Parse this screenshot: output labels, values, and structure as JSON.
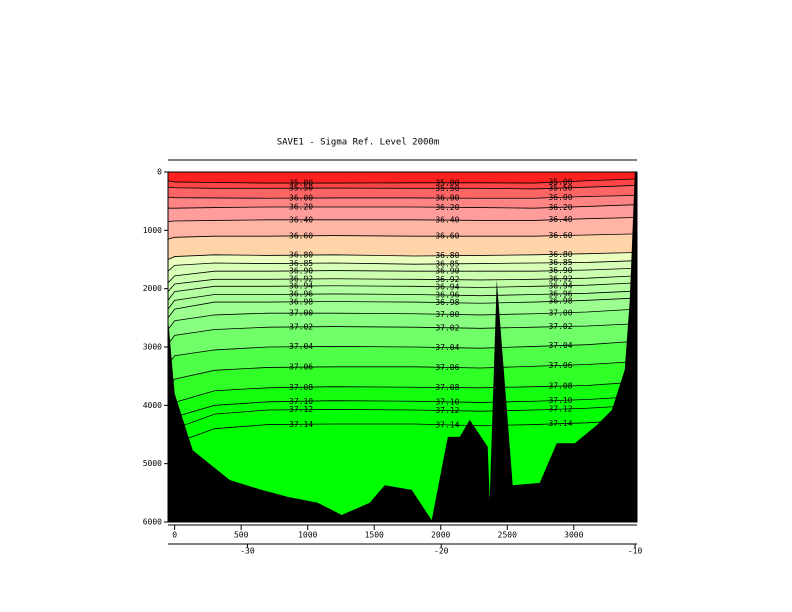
{
  "chart_data": {
    "type": "contour",
    "title": "SAVE1 - Sigma Ref. Level 2000m",
    "top_color": "#ff2020",
    "x": [
      -50,
      0,
      300,
      700,
      1200,
      1800,
      2300,
      2700,
      3100,
      3475
    ],
    "xlim": [
      -50,
      3475
    ],
    "xticks": [
      0,
      500,
      1000,
      1500,
      2000,
      2500,
      3000
    ],
    "ylim": [
      0,
      6000
    ],
    "yticks": [
      0,
      1000,
      2000,
      3000,
      4000,
      5000,
      6000
    ],
    "x2lim": [
      -34.1,
      -9.9
    ],
    "x2ticks": [
      -30,
      -20,
      -10
    ],
    "series": [
      {
        "name": "35.00",
        "color": "#ff4545",
        "values": [
          150,
          170,
          180,
          190,
          190,
          185,
          185,
          190,
          150,
          120
        ]
      },
      {
        "name": "35.50",
        "color": "#ff6565",
        "values": [
          260,
          270,
          280,
          280,
          275,
          280,
          280,
          290,
          260,
          230
        ]
      },
      {
        "name": "36.00",
        "color": "#ff8585",
        "values": [
          430,
          440,
          445,
          450,
          445,
          445,
          450,
          450,
          420,
          400
        ]
      },
      {
        "name": "36.20",
        "color": "#ff9c9c",
        "values": [
          620,
          620,
          610,
          600,
          600,
          600,
          610,
          620,
          590,
          560
        ]
      },
      {
        "name": "36.40",
        "color": "#ffb4a4",
        "values": [
          850,
          840,
          830,
          820,
          820,
          820,
          830,
          830,
          800,
          780
        ]
      },
      {
        "name": "36.60",
        "color": "#ffd4a8",
        "values": [
          1150,
          1120,
          1100,
          1100,
          1090,
          1100,
          1100,
          1100,
          1080,
          1060
        ]
      },
      {
        "name": "36.80",
        "color": "#eaffc0",
        "values": [
          1500,
          1450,
          1420,
          1430,
          1420,
          1440,
          1430,
          1420,
          1400,
          1380
        ]
      },
      {
        "name": "36.85",
        "color": "#d8ffb8",
        "values": [
          1700,
          1600,
          1560,
          1570,
          1560,
          1580,
          1570,
          1560,
          1550,
          1520
        ]
      },
      {
        "name": "36.90",
        "color": "#ccffb0",
        "values": [
          1900,
          1780,
          1700,
          1700,
          1690,
          1700,
          1700,
          1700,
          1680,
          1650
        ]
      },
      {
        "name": "36.92",
        "color": "#c0ffa8",
        "values": [
          2050,
          1920,
          1840,
          1840,
          1830,
          1840,
          1850,
          1840,
          1820,
          1780
        ]
      },
      {
        "name": "36.94",
        "color": "#b4ffa0",
        "values": [
          2200,
          2050,
          1960,
          1960,
          1950,
          1960,
          1980,
          1960,
          1940,
          1900
        ]
      },
      {
        "name": "36.96",
        "color": "#a8ff98",
        "values": [
          2350,
          2200,
          2100,
          2100,
          2090,
          2100,
          2120,
          2100,
          2080,
          2040
        ]
      },
      {
        "name": "36.98",
        "color": "#9cff90",
        "values": [
          2500,
          2350,
          2230,
          2230,
          2220,
          2230,
          2250,
          2230,
          2200,
          2160
        ]
      },
      {
        "name": "37.00",
        "color": "#88ff80",
        "values": [
          2700,
          2550,
          2450,
          2420,
          2420,
          2430,
          2450,
          2430,
          2400,
          2350
        ]
      },
      {
        "name": "37.02",
        "color": "#70ff68",
        "values": [
          2950,
          2800,
          2700,
          2660,
          2650,
          2660,
          2680,
          2660,
          2640,
          2600
        ]
      },
      {
        "name": "37.04",
        "color": "#50ff48",
        "values": [
          3300,
          3150,
          3050,
          3000,
          2990,
          3000,
          3020,
          2990,
          2960,
          2900
        ]
      },
      {
        "name": "37.06",
        "color": "#30ff28",
        "values": [
          3700,
          3550,
          3400,
          3350,
          3340,
          3340,
          3360,
          3330,
          3300,
          3250
        ]
      },
      {
        "name": "37.08",
        "color": "#14ff10",
        "values": [
          4050,
          3950,
          3750,
          3700,
          3680,
          3690,
          3700,
          3680,
          3660,
          3600
        ]
      },
      {
        "name": "37.10",
        "color": "#08ff08",
        "values": [
          4300,
          4200,
          4000,
          3940,
          3920,
          3930,
          3950,
          3930,
          3900,
          3850
        ]
      },
      {
        "name": "37.12",
        "color": "#00ff00",
        "values": [
          4500,
          4400,
          4150,
          4080,
          4070,
          4080,
          4100,
          4080,
          4050,
          4000
        ]
      },
      {
        "name": "37.14",
        "color": "#00ff00",
        "values": [
          4750,
          4650,
          4400,
          4330,
          4320,
          4320,
          4350,
          4330,
          4300,
          4250
        ]
      }
    ],
    "bathymetry": {
      "color": "#000000",
      "x": [
        -50,
        0,
        136,
        414,
        654,
        850,
        1075,
        1256,
        1466,
        1579,
        1782,
        1932,
        2053,
        2143,
        2218,
        2353,
        2368,
        2421,
        2541,
        2744,
        2872,
        3008,
        3173,
        3286,
        3383,
        3421,
        3459,
        3475,
        3475,
        -50
      ],
      "depth": [
        2500,
        3800,
        4770,
        5280,
        5450,
        5570,
        5670,
        5880,
        5670,
        5370,
        5450,
        5970,
        4540,
        4540,
        4250,
        4710,
        5620,
        1850,
        5370,
        5330,
        4650,
        4650,
        4340,
        4080,
        3390,
        2190,
        0,
        0,
        6000,
        6000
      ]
    }
  }
}
